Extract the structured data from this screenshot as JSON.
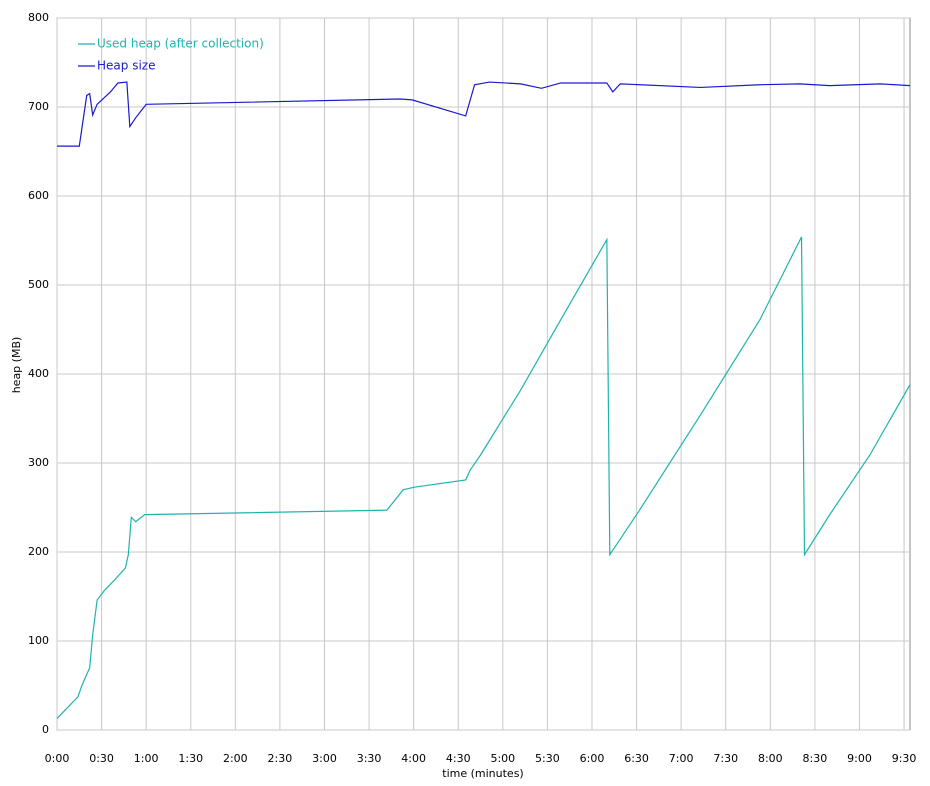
{
  "chart_data": {
    "type": "line",
    "xlabel": "time (minutes)",
    "ylabel": "heap (MB)",
    "xlim": [
      0,
      574
    ],
    "ylim": [
      0,
      800
    ],
    "xticks": [
      {
        "value": 0,
        "label": "0:00"
      },
      {
        "value": 30,
        "label": "0:30"
      },
      {
        "value": 60,
        "label": "1:00"
      },
      {
        "value": 90,
        "label": "1:30"
      },
      {
        "value": 120,
        "label": "2:00"
      },
      {
        "value": 150,
        "label": "2:30"
      },
      {
        "value": 180,
        "label": "3:00"
      },
      {
        "value": 210,
        "label": "3:30"
      },
      {
        "value": 240,
        "label": "4:00"
      },
      {
        "value": 270,
        "label": "4:30"
      },
      {
        "value": 300,
        "label": "5:00"
      },
      {
        "value": 330,
        "label": "5:30"
      },
      {
        "value": 360,
        "label": "6:00"
      },
      {
        "value": 390,
        "label": "6:30"
      },
      {
        "value": 420,
        "label": "7:00"
      },
      {
        "value": 450,
        "label": "7:30"
      },
      {
        "value": 480,
        "label": "8:00"
      },
      {
        "value": 510,
        "label": "8:30"
      },
      {
        "value": 540,
        "label": "9:00"
      },
      {
        "value": 570,
        "label": "9:30"
      }
    ],
    "yticks": [
      0,
      100,
      200,
      300,
      400,
      500,
      600,
      700,
      800
    ],
    "grid": true,
    "legend": "upper left",
    "series": [
      {
        "name": "Used heap (after collection)",
        "color": "#1fb3ad",
        "x": [
          0,
          14,
          17,
          22,
          24,
          27,
          32,
          39,
          46,
          48,
          50,
          53,
          59,
          222,
          233,
          241,
          275,
          278,
          285,
          312,
          339,
          370,
          372,
          392,
          433,
          473,
          501,
          503,
          520,
          547,
          574
        ],
        "values": [
          13,
          37,
          51,
          70,
          107,
          146,
          157,
          169,
          182,
          197,
          239,
          234,
          242,
          247,
          270,
          273,
          281,
          292,
          309,
          382,
          461,
          551,
          197,
          247,
          354,
          461,
          554,
          197,
          242,
          309,
          388
        ]
      },
      {
        "name": "Heap size",
        "color": "#1a1acd",
        "x": [
          0,
          15,
          20,
          22,
          24,
          27,
          36,
          41,
          47,
          49,
          53,
          60,
          231,
          239,
          275,
          281,
          291,
          312,
          326,
          339,
          370,
          374,
          379,
          433,
          473,
          500,
          520,
          554,
          574
        ],
        "values": [
          656,
          656,
          713,
          715,
          691,
          703,
          717,
          727,
          728,
          678,
          688,
          703,
          709,
          708,
          690,
          725,
          728,
          726,
          721,
          727,
          727,
          717,
          726,
          722,
          725,
          726,
          724,
          726,
          724
        ]
      }
    ]
  }
}
